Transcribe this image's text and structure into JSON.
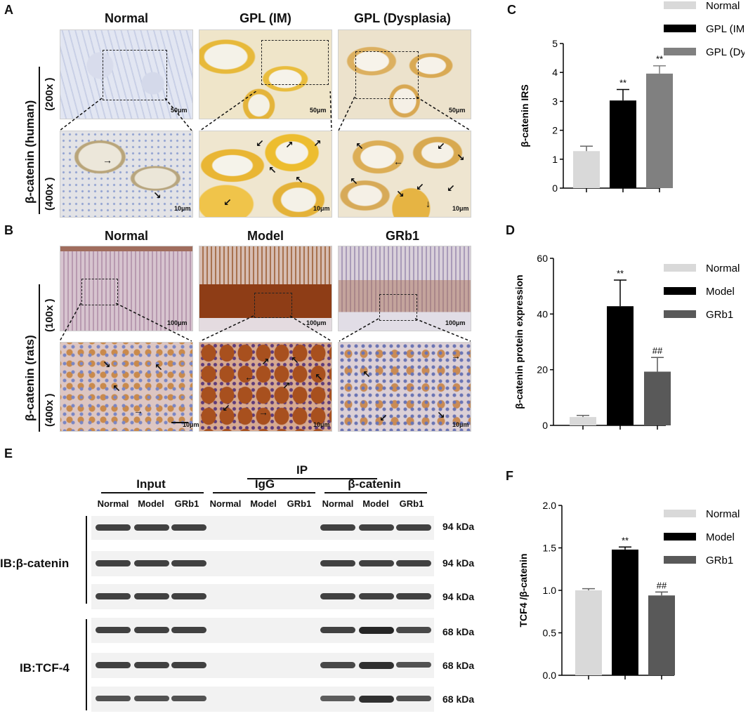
{
  "panelA": {
    "letter": "A",
    "columns": [
      "Normal",
      "GPL (IM)",
      "GPL (Dysplasia)"
    ],
    "side_label": "β-catenin (human)",
    "mag_top": "(200x )",
    "mag_bottom": "(400x )",
    "scale_top": "50μm",
    "scale_bottom": "10μm"
  },
  "panelB": {
    "letter": "B",
    "columns": [
      "Normal",
      "Model",
      "GRb1"
    ],
    "side_label": "β-catenin (rats)",
    "mag_top": "(100x )",
    "mag_bottom": "(400x )",
    "scale_top": "100μm",
    "scale_bottom": "10μm"
  },
  "panelE": {
    "letter": "E",
    "ip_label": "IP",
    "groups": [
      "Input",
      "IgG",
      "β-catenin"
    ],
    "lanes": [
      "Normal",
      "Model",
      "GRb1",
      "Normal",
      "Model",
      "GRb1",
      "Normal",
      "Model",
      "GRb1"
    ],
    "ib_labels": [
      "IB:β-catenin",
      "IB:TCF-4"
    ],
    "kda": [
      "94 kDa",
      "94 kDa",
      "94 kDa",
      "68 kDa",
      "68 kDa",
      "68 kDa"
    ]
  },
  "chart_data": [
    {
      "panel": "C",
      "type": "bar",
      "categories": [
        "Normal",
        "GPL (IM)",
        "GPL (Dys)"
      ],
      "values": [
        1.28,
        3.03,
        3.96
      ],
      "errors": [
        0.17,
        0.38,
        0.27
      ],
      "annotations": [
        "",
        "**",
        "**"
      ],
      "ylabel": "β-catenin IRS",
      "ylim": [
        0,
        5
      ],
      "yticks": [
        "0",
        "1",
        "2",
        "3",
        "4",
        "5"
      ],
      "colors": [
        "#d9d9d9",
        "#000000",
        "#808080"
      ],
      "legend": [
        "Normal",
        "GPL (IM)",
        "GPL (Dys)"
      ]
    },
    {
      "panel": "D",
      "type": "bar",
      "categories": [
        "Normal",
        "Model",
        "GRb1"
      ],
      "values": [
        3.0,
        42.8,
        19.3
      ],
      "errors": [
        0.6,
        9.4,
        5.1
      ],
      "annotations": [
        "",
        "**",
        "##"
      ],
      "ylabel": "β-catenin protein expression",
      "ylim": [
        0,
        60
      ],
      "yticks": [
        "0",
        "20",
        "40",
        "60"
      ],
      "colors": [
        "#d9d9d9",
        "#000000",
        "#595959"
      ],
      "legend": [
        "Normal",
        "Model",
        "GRb1"
      ]
    },
    {
      "panel": "F",
      "type": "bar",
      "categories": [
        "Normal",
        "Model",
        "GRb1"
      ],
      "values": [
        1.0,
        1.48,
        0.94
      ],
      "errors": [
        0.02,
        0.03,
        0.04
      ],
      "annotations": [
        "",
        "**",
        "##"
      ],
      "ylabel": "TCF4 /β-catenin",
      "ylim": [
        0,
        2.0
      ],
      "yticks": [
        "0.0",
        "0.5",
        "1.0",
        "1.5",
        "2.0"
      ],
      "colors": [
        "#d9d9d9",
        "#000000",
        "#595959"
      ],
      "legend": [
        "Normal",
        "Model",
        "GRb1"
      ]
    }
  ]
}
